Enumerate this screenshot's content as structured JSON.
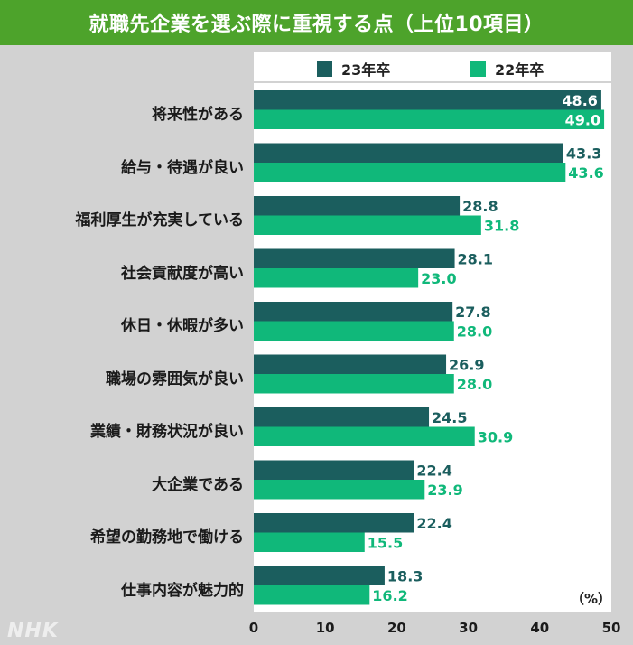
{
  "title": "就職先企業を選ぶ際に重視する点（上位10項目）",
  "logo": "NHK",
  "colors": {
    "header_green": "#4da32b",
    "series_23": "#1b5e5e",
    "series_22": "#10b87a",
    "background": "#d2d2d2"
  },
  "chart_data": {
    "type": "bar",
    "orientation": "horizontal",
    "title": "就職先企業を選ぶ際に重視する点（上位10項目）",
    "unit_label": "（%）",
    "categories": [
      "将来性がある",
      "給与・待遇が良い",
      "福利厚生が充実している",
      "社会貢献度が高い",
      "休日・休暇が多い",
      "職場の雰囲気が良い",
      "業績・財務状況が良い",
      "大企業である",
      "希望の勤務地で働ける",
      "仕事内容が魅力的"
    ],
    "series": [
      {
        "name": "23年卒",
        "color": "#1b5e5e",
        "values": [
          48.6,
          43.3,
          28.8,
          28.1,
          27.8,
          26.9,
          24.5,
          22.4,
          22.4,
          18.3
        ]
      },
      {
        "name": "22年卒",
        "color": "#10b87a",
        "values": [
          49.0,
          43.6,
          31.8,
          23.0,
          28.0,
          28.0,
          30.9,
          23.9,
          15.5,
          16.2
        ]
      }
    ],
    "xlim": [
      0,
      50
    ],
    "xticks": [
      0,
      10,
      20,
      30,
      40,
      50
    ],
    "legend_position": "top",
    "grid": false
  }
}
